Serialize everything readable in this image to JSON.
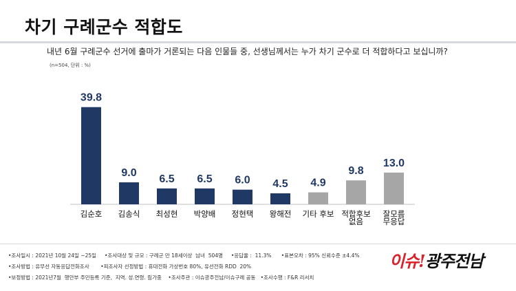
{
  "header": {
    "title": "차기 구례군수 적합도",
    "question": "내년 6월 구례군수 선거에 출마가 거론되는 다음 인물들 중, 선생님께서는 누가 차기 군수로 더 적합하다고 보십니까?",
    "note": "(n=504, 단위 : %)"
  },
  "chart_data": {
    "type": "bar",
    "title": "차기 구례군수 적합도",
    "categories": [
      "김순호",
      "김송식",
      "최성현",
      "박양배",
      "정현택",
      "왕해전",
      "기타 후보",
      "적합후보 없음",
      "잘모름 무응답"
    ],
    "values": [
      39.8,
      9.0,
      6.5,
      6.5,
      6.0,
      4.5,
      4.9,
      9.8,
      13.0
    ],
    "value_labels": [
      "39.8",
      "9.0",
      "6.5",
      "6.5",
      "6.0",
      "4.5",
      "4.9",
      "9.8",
      "13.0"
    ],
    "category_lines": [
      [
        "김순호"
      ],
      [
        "김송식"
      ],
      [
        "최성현"
      ],
      [
        "박양배"
      ],
      [
        "정현택"
      ],
      [
        "왕해전"
      ],
      [
        "기타 후보"
      ],
      [
        "적합후보",
        "없음"
      ],
      [
        "잘모름",
        "무응답"
      ]
    ],
    "ylim": [
      0,
      40
    ],
    "grid": false,
    "legend": "none",
    "colors": {
      "candidate": "#1f3864",
      "other": "#a6a6a6",
      "value_candidate": "#1f3864",
      "value_other": "#1f3864",
      "baseline": "#bfbfbf"
    },
    "bar_color_groups": [
      "candidate",
      "candidate",
      "candidate",
      "candidate",
      "candidate",
      "candidate",
      "other",
      "other",
      "other"
    ]
  },
  "footer": {
    "line1": "•조사일시 : 2021년 10월 24일 ~25일     •조사대상 및 규모 : 구례군 만 18세이상  남녀  504명     •응답율 :  11.3%      •표본오차 : 95% 신뢰수준 ±4.4%",
    "line2": "•조사방법 : 유무선 자동응답전화조사       •피조사자 선정방법 : 휴대전화 가상번호 80%, 유선전화 RDD  20%",
    "line3": "•보정방법 : 2021년7월  행안부 주민등록 기준,  지역. 성.연령. 림가중    •조사주관 : 이슈광주전남/이슈구례 공동   •조사수행 : F&R 리서치"
  },
  "logo": {
    "part1": "이슈!",
    "part2": "광주전남"
  }
}
